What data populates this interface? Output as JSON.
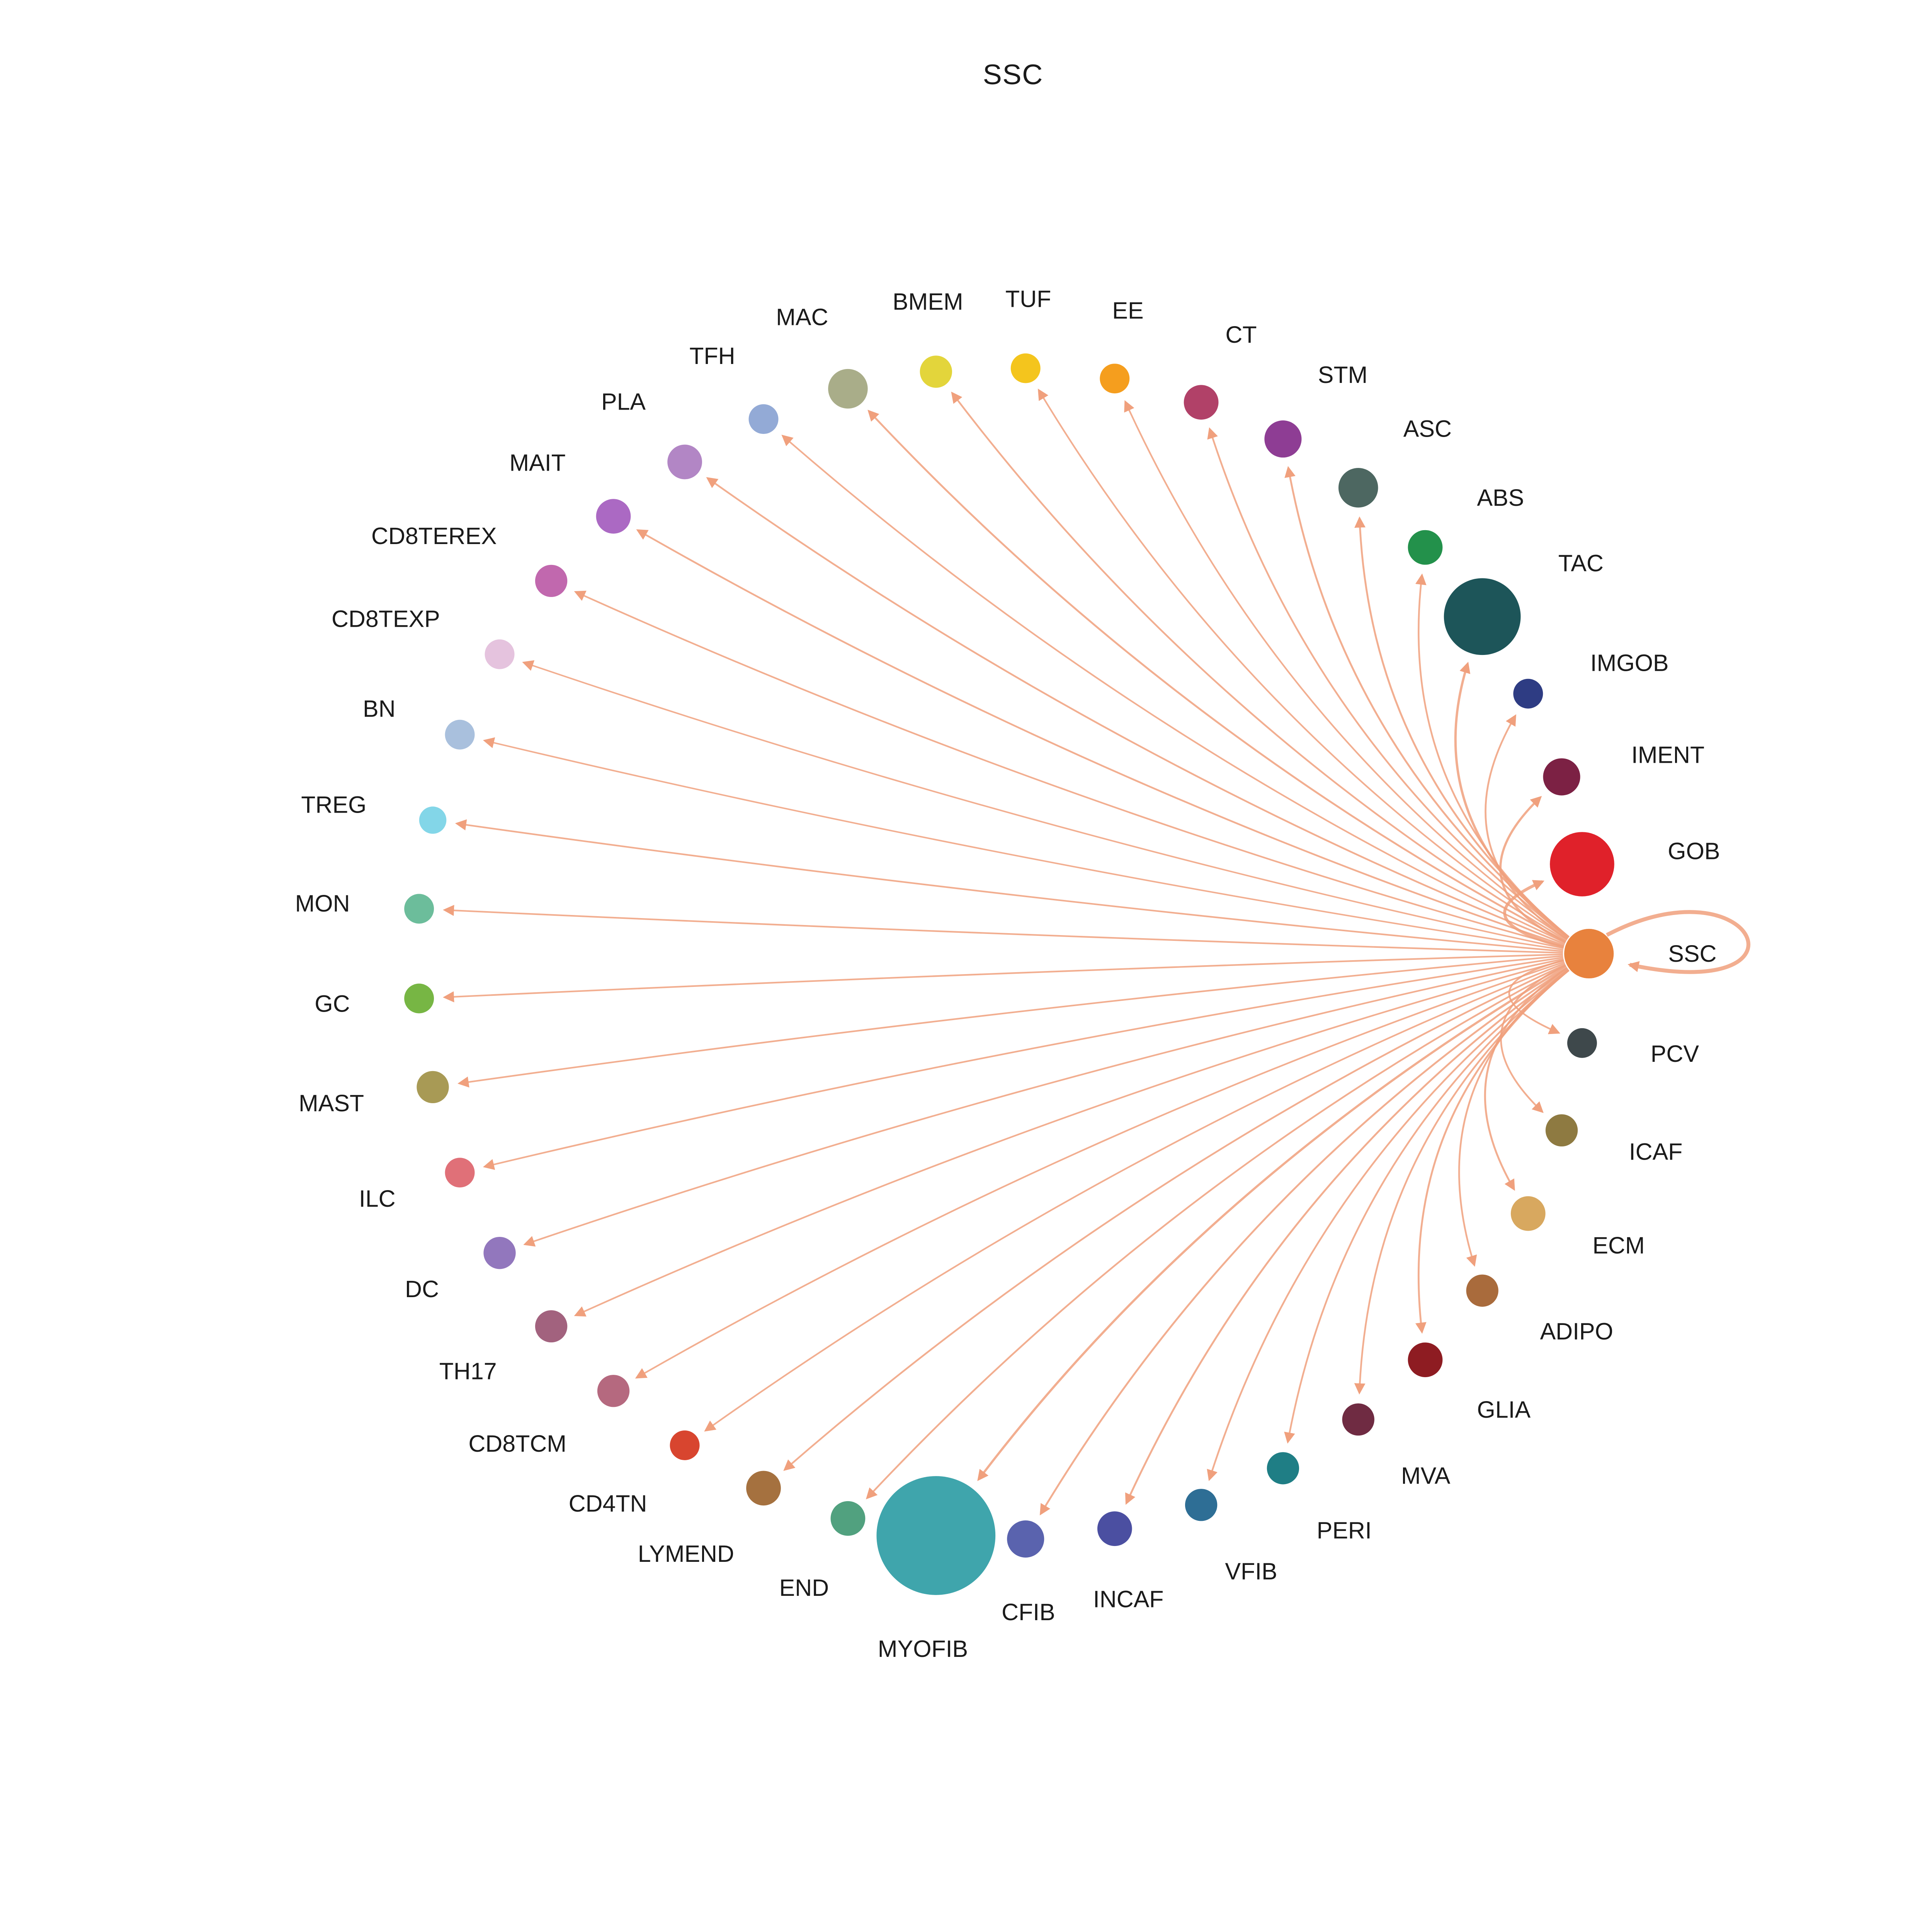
{
  "title": "SSC",
  "chart_data": {
    "type": "network",
    "layout": "circular",
    "source_node": "SSC",
    "edge_color": "#f0a07d",
    "nodes": [
      {
        "id": "SSC",
        "label": "SSC",
        "color": "#e8823d",
        "size": 20
      },
      {
        "id": "PCV",
        "label": "PCV",
        "color": "#3e484b",
        "size": 12
      },
      {
        "id": "ICAF",
        "label": "ICAF",
        "color": "#8e7a41",
        "size": 13
      },
      {
        "id": "ECM",
        "label": "ECM",
        "color": "#d8a85f",
        "size": 14
      },
      {
        "id": "ADIPO",
        "label": "ADIPO",
        "color": "#a96b3c",
        "size": 13
      },
      {
        "id": "GLIA",
        "label": "GLIA",
        "color": "#8e1c22",
        "size": 14
      },
      {
        "id": "MVA",
        "label": "MVA",
        "color": "#6f2b42",
        "size": 13
      },
      {
        "id": "PERI",
        "label": "PERI",
        "color": "#1f7e85",
        "size": 13
      },
      {
        "id": "VFIB",
        "label": "VFIB",
        "color": "#2e6e95",
        "size": 13
      },
      {
        "id": "INCAF",
        "label": "INCAF",
        "color": "#4b4fa1",
        "size": 14
      },
      {
        "id": "CFIB",
        "label": "CFIB",
        "color": "#5a63ae",
        "size": 15
      },
      {
        "id": "MYOFIB",
        "label": "MYOFIB",
        "color": "#3fa5ac",
        "size": 48
      },
      {
        "id": "END",
        "label": "END",
        "color": "#51a17f",
        "size": 14
      },
      {
        "id": "LYMEND",
        "label": "LYMEND",
        "color": "#a5713f",
        "size": 14
      },
      {
        "id": "CD4TN",
        "label": "CD4TN",
        "color": "#d8452f",
        "size": 12
      },
      {
        "id": "CD8TCM",
        "label": "CD8TCM",
        "color": "#b5697f",
        "size": 13
      },
      {
        "id": "TH17",
        "label": "TH17",
        "color": "#a2627e",
        "size": 13
      },
      {
        "id": "DC",
        "label": "DC",
        "color": "#9277bd",
        "size": 13
      },
      {
        "id": "ILC",
        "label": "ILC",
        "color": "#e07078",
        "size": 12
      },
      {
        "id": "MAST",
        "label": "MAST",
        "color": "#a89a55",
        "size": 13
      },
      {
        "id": "GC",
        "label": "GC",
        "color": "#77b644",
        "size": 12
      },
      {
        "id": "MON",
        "label": "MON",
        "color": "#6cbd9b",
        "size": 12
      },
      {
        "id": "TREG",
        "label": "TREG",
        "color": "#83d6e8",
        "size": 11
      },
      {
        "id": "BN",
        "label": "BN",
        "color": "#a9c0dd",
        "size": 12
      },
      {
        "id": "CD8TEXP",
        "label": "CD8TEXP",
        "color": "#e5c3de",
        "size": 12
      },
      {
        "id": "CD8TEREX",
        "label": "CD8TEREX",
        "color": "#c168ae",
        "size": 13
      },
      {
        "id": "MAIT",
        "label": "MAIT",
        "color": "#ab69c3",
        "size": 14
      },
      {
        "id": "PLA",
        "label": "PLA",
        "color": "#b286c5",
        "size": 14
      },
      {
        "id": "TFH",
        "label": "TFH",
        "color": "#93aad6",
        "size": 12
      },
      {
        "id": "MAC",
        "label": "MAC",
        "color": "#a9ad89",
        "size": 16
      },
      {
        "id": "BMEM",
        "label": "BMEM",
        "color": "#e3d53b",
        "size": 13
      },
      {
        "id": "TUF",
        "label": "TUF",
        "color": "#f4c51d",
        "size": 12
      },
      {
        "id": "EE",
        "label": "EE",
        "color": "#f59e1e",
        "size": 12
      },
      {
        "id": "CT",
        "label": "CT",
        "color": "#b14168",
        "size": 14
      },
      {
        "id": "STM",
        "label": "STM",
        "color": "#8e3d94",
        "size": 15
      },
      {
        "id": "ASC",
        "label": "ASC",
        "color": "#4d6761",
        "size": 16
      },
      {
        "id": "ABS",
        "label": "ABS",
        "color": "#23914b",
        "size": 14
      },
      {
        "id": "TAC",
        "label": "TAC",
        "color": "#1d5559",
        "size": 31
      },
      {
        "id": "IMGOB",
        "label": "IMGOB",
        "color": "#2e3c83",
        "size": 12
      },
      {
        "id": "IMENT",
        "label": "IMENT",
        "color": "#7c2144",
        "size": 15
      },
      {
        "id": "GOB",
        "label": "GOB",
        "color": "#e0212a",
        "size": 26
      }
    ],
    "edges": [
      {
        "source": "SSC",
        "target": "SSC",
        "weight": 3.2
      },
      {
        "source": "SSC",
        "target": "PCV",
        "weight": 1.4
      },
      {
        "source": "SSC",
        "target": "ICAF",
        "weight": 1.4
      },
      {
        "source": "SSC",
        "target": "ECM",
        "weight": 1.5
      },
      {
        "source": "SSC",
        "target": "ADIPO",
        "weight": 1.4
      },
      {
        "source": "SSC",
        "target": "GLIA",
        "weight": 1.5
      },
      {
        "source": "SSC",
        "target": "MVA",
        "weight": 1.4
      },
      {
        "source": "SSC",
        "target": "PERI",
        "weight": 1.4
      },
      {
        "source": "SSC",
        "target": "VFIB",
        "weight": 1.4
      },
      {
        "source": "SSC",
        "target": "INCAF",
        "weight": 1.5
      },
      {
        "source": "SSC",
        "target": "CFIB",
        "weight": 1.5
      },
      {
        "source": "SSC",
        "target": "MYOFIB",
        "weight": 1.8
      },
      {
        "source": "SSC",
        "target": "END",
        "weight": 1.4
      },
      {
        "source": "SSC",
        "target": "LYMEND",
        "weight": 1.4
      },
      {
        "source": "SSC",
        "target": "CD4TN",
        "weight": 1.3
      },
      {
        "source": "SSC",
        "target": "CD8TCM",
        "weight": 1.3
      },
      {
        "source": "SSC",
        "target": "TH17",
        "weight": 1.3
      },
      {
        "source": "SSC",
        "target": "DC",
        "weight": 1.3
      },
      {
        "source": "SSC",
        "target": "ILC",
        "weight": 1.3
      },
      {
        "source": "SSC",
        "target": "MAST",
        "weight": 1.3
      },
      {
        "source": "SSC",
        "target": "GC",
        "weight": 1.3
      },
      {
        "source": "SSC",
        "target": "MON",
        "weight": 1.3
      },
      {
        "source": "SSC",
        "target": "TREG",
        "weight": 1.3
      },
      {
        "source": "SSC",
        "target": "BN",
        "weight": 1.2
      },
      {
        "source": "SSC",
        "target": "CD8TEXP",
        "weight": 1.2
      },
      {
        "source": "SSC",
        "target": "CD8TEREX",
        "weight": 1.3
      },
      {
        "source": "SSC",
        "target": "MAIT",
        "weight": 1.4
      },
      {
        "source": "SSC",
        "target": "PLA",
        "weight": 1.4
      },
      {
        "source": "SSC",
        "target": "TFH",
        "weight": 1.3
      },
      {
        "source": "SSC",
        "target": "MAC",
        "weight": 1.5
      },
      {
        "source": "SSC",
        "target": "BMEM",
        "weight": 1.4
      },
      {
        "source": "SSC",
        "target": "TUF",
        "weight": 1.3
      },
      {
        "source": "SSC",
        "target": "EE",
        "weight": 1.3
      },
      {
        "source": "SSC",
        "target": "CT",
        "weight": 1.4
      },
      {
        "source": "SSC",
        "target": "STM",
        "weight": 1.5
      },
      {
        "source": "SSC",
        "target": "ASC",
        "weight": 1.5
      },
      {
        "source": "SSC",
        "target": "ABS",
        "weight": 1.4
      },
      {
        "source": "SSC",
        "target": "TAC",
        "weight": 1.9
      },
      {
        "source": "SSC",
        "target": "IMGOB",
        "weight": 1.4
      },
      {
        "source": "SSC",
        "target": "IMENT",
        "weight": 1.8
      },
      {
        "source": "SSC",
        "target": "GOB",
        "weight": 2.4
      }
    ]
  }
}
